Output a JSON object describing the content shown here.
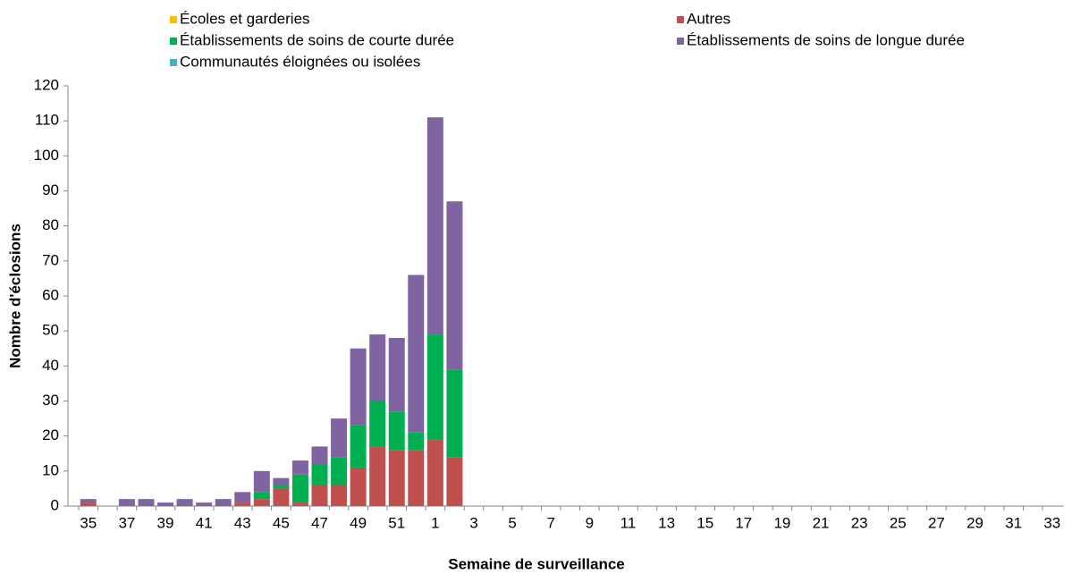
{
  "chart_data": {
    "type": "stacked_bar",
    "y_label": "Nombre d'éclosions",
    "x_label": "Semaine de surveillance",
    "categories": [
      "35",
      null,
      "37",
      null,
      "39",
      null,
      "41",
      null,
      "43",
      null,
      "45",
      null,
      "47",
      null,
      "49",
      null,
      "51",
      null,
      "1",
      null,
      "3",
      null,
      "5",
      null,
      "7",
      null,
      "9",
      null,
      "11",
      null,
      "13",
      null,
      "15",
      null,
      "17",
      null,
      "19",
      null,
      "21",
      null,
      "23",
      null,
      "25",
      null,
      "27",
      null,
      "29",
      null,
      "31",
      null,
      "33"
    ],
    "series": [
      {
        "name": "Autres",
        "color": "#c0504d",
        "values": [
          1,
          0,
          0,
          0,
          0,
          0,
          0,
          0,
          1,
          2,
          5,
          1,
          6,
          6,
          11,
          17,
          16,
          16,
          19,
          14,
          0,
          0,
          0,
          0,
          0,
          0,
          0,
          0,
          0,
          0,
          0,
          0,
          0,
          0,
          0,
          0,
          0,
          0,
          0,
          0,
          0,
          0,
          0,
          0,
          0,
          0,
          0,
          0,
          0,
          0,
          0
        ]
      },
      {
        "name": "Établissements de soins de courte durée",
        "color": "#00b050",
        "values": [
          0,
          0,
          0,
          0,
          0,
          0,
          0,
          0,
          0,
          2,
          1,
          8,
          6,
          8,
          12,
          13,
          11,
          5,
          30,
          25,
          0,
          0,
          0,
          0,
          0,
          0,
          0,
          0,
          0,
          0,
          0,
          0,
          0,
          0,
          0,
          0,
          0,
          0,
          0,
          0,
          0,
          0,
          0,
          0,
          0,
          0,
          0,
          0,
          0,
          0,
          0
        ]
      },
      {
        "name": "Établissements de soins de longue durée",
        "color": "#8064a2",
        "values": [
          1,
          0,
          2,
          2,
          1,
          2,
          1,
          2,
          3,
          6,
          2,
          4,
          5,
          11,
          22,
          19,
          21,
          45,
          62,
          48,
          0,
          0,
          0,
          0,
          0,
          0,
          0,
          0,
          0,
          0,
          0,
          0,
          0,
          0,
          0,
          0,
          0,
          0,
          0,
          0,
          0,
          0,
          0,
          0,
          0,
          0,
          0,
          0,
          0,
          0,
          0
        ]
      },
      {
        "name": "Écoles et garderies",
        "color": "#ffc000",
        "values": [
          0,
          0,
          0,
          0,
          0,
          0,
          0,
          0,
          0,
          0,
          0,
          0,
          0,
          0,
          0,
          0,
          0,
          0,
          0,
          0,
          0,
          0,
          0,
          0,
          0,
          0,
          0,
          0,
          0,
          0,
          0,
          0,
          0,
          0,
          0,
          0,
          0,
          0,
          0,
          0,
          0,
          0,
          0,
          0,
          0,
          0,
          0,
          0,
          0,
          0,
          0
        ]
      },
      {
        "name": "Communautés éloignées ou isolées",
        "color": "#4bacc6",
        "values": [
          0,
          0,
          0,
          0,
          0,
          0,
          0,
          0,
          0,
          0,
          0,
          0,
          0,
          0,
          0,
          0,
          0,
          0,
          0,
          0,
          0,
          0,
          0,
          0,
          0,
          0,
          0,
          0,
          0,
          0,
          0,
          0,
          0,
          0,
          0,
          0,
          0,
          0,
          0,
          0,
          0,
          0,
          0,
          0,
          0,
          0,
          0,
          0,
          0,
          0,
          0
        ]
      }
    ],
    "ylim": [
      0,
      120
    ],
    "yticks": [
      0,
      10,
      20,
      30,
      40,
      50,
      60,
      70,
      80,
      90,
      100,
      110,
      120
    ]
  }
}
